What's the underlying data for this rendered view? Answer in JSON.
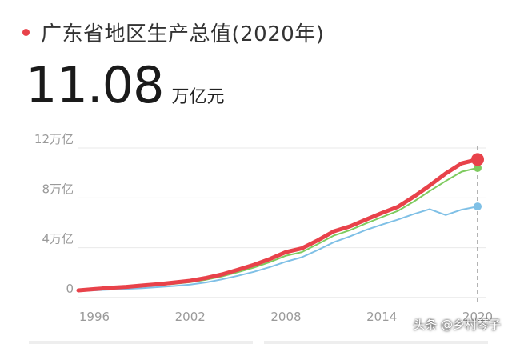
{
  "header": {
    "title": "广东省地区生产总值(2020年)"
  },
  "headline": {
    "value": "11.08",
    "unit": "万亿元"
  },
  "watermark": "头条 @乡村琴子",
  "colors": {
    "main": "#e8424a",
    "secondary": "#7ecb5f",
    "tertiary": "#7fc0e6",
    "dot": "#e8424a"
  },
  "chart_data": {
    "type": "line",
    "title": "广东省地区生产总值(2020年)",
    "ylabel": "",
    "xlabel": "",
    "x_ticks": [
      "1996",
      "2002",
      "2008",
      "2014",
      "2020"
    ],
    "y_ticks": [
      {
        "value": 0,
        "label": "0"
      },
      {
        "value": 4,
        "label": "4万亿"
      },
      {
        "value": 8,
        "label": "8万亿"
      },
      {
        "value": 12,
        "label": "12万亿"
      }
    ],
    "xlim": [
      1995,
      2020
    ],
    "ylim": [
      0,
      12
    ],
    "x": [
      1995,
      1996,
      1997,
      1998,
      1999,
      2000,
      2001,
      2002,
      2003,
      2004,
      2005,
      2006,
      2007,
      2008,
      2009,
      2010,
      2011,
      2012,
      2013,
      2014,
      2015,
      2016,
      2017,
      2018,
      2019,
      2020
    ],
    "series": [
      {
        "color": "#e8424a",
        "values": [
          0.58,
          0.68,
          0.78,
          0.86,
          0.97,
          1.08,
          1.21,
          1.35,
          1.58,
          1.86,
          2.24,
          2.63,
          3.1,
          3.65,
          3.95,
          4.6,
          5.32,
          5.71,
          6.25,
          6.78,
          7.28,
          8.09,
          8.99,
          9.95,
          10.77,
          11.08
        ]
      },
      {
        "color": "#7ecb5f",
        "values": [
          0.56,
          0.64,
          0.72,
          0.8,
          0.9,
          1.0,
          1.1,
          1.23,
          1.43,
          1.7,
          2.04,
          2.41,
          2.85,
          3.36,
          3.65,
          4.3,
          4.98,
          5.4,
          5.95,
          6.45,
          6.95,
          7.7,
          8.55,
          9.35,
          10.1,
          10.4
        ]
      },
      {
        "color": "#7fc0e6",
        "values": [
          0.52,
          0.58,
          0.64,
          0.7,
          0.76,
          0.84,
          0.93,
          1.04,
          1.22,
          1.46,
          1.75,
          2.07,
          2.45,
          2.88,
          3.24,
          3.82,
          4.45,
          4.9,
          5.42,
          5.85,
          6.25,
          6.7,
          7.1,
          6.62,
          7.05,
          7.31
        ]
      }
    ],
    "legend": "none",
    "grid": true
  }
}
